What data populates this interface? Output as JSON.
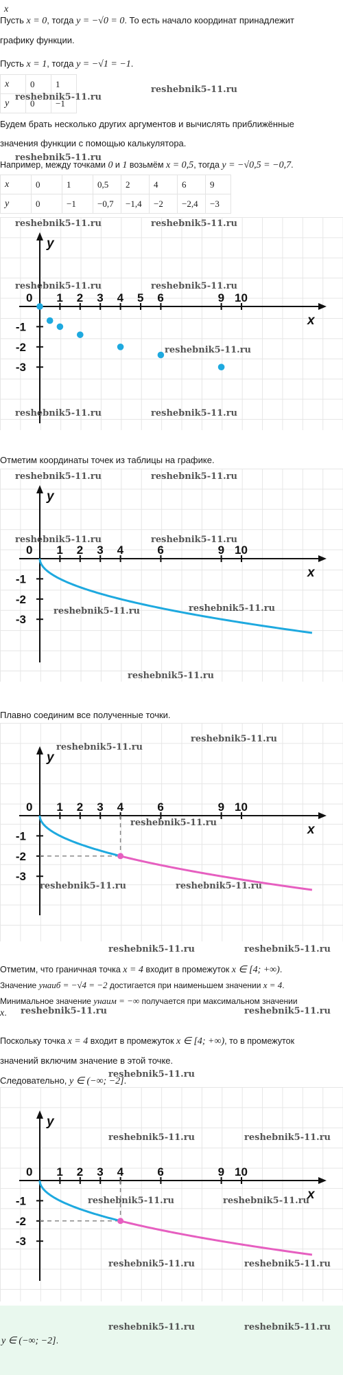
{
  "watermark": "reshebnik5-11.ru",
  "intro": {
    "header_var": "x",
    "line1_a": "Пусть ",
    "line1_m1": "x = 0",
    "line1_b": ", тогда ",
    "line1_m2": "y = −√0 = 0",
    "line1_c": ". То есть начало координат принадлежит",
    "line2": "графику функции.",
    "line3_a": "Пусть ",
    "line3_m1": "x = 1",
    "line3_b": ", тогда ",
    "line3_m2": "y = −√1 = −1",
    "line3_c": "."
  },
  "table1": {
    "rows": [
      [
        "x",
        "0",
        "1"
      ],
      [
        "y",
        "0",
        "−1"
      ]
    ]
  },
  "para2": {
    "line1": "Будем брать несколько других аргументов и вычислять приближённые",
    "line2": "значения функции с помощью калькулятора.",
    "line3_a": "Например, между точками ",
    "line3_m1": "0",
    "line3_b": " и ",
    "line3_m2": "1",
    "line3_c": " возьмём ",
    "line3_m3": "x = 0,5",
    "line3_d": ", тогда ",
    "line3_m4": "y = −√0,5 = −0,7",
    "line3_e": "."
  },
  "table2": {
    "rows": [
      [
        "x",
        "0",
        "1",
        "0,5",
        "2",
        "4",
        "6",
        "9"
      ],
      [
        "y",
        "0",
        "−1",
        "−0,7",
        "−1,4",
        "−2",
        "−2,4",
        "−3"
      ]
    ]
  },
  "chart_data": [
    {
      "type": "scatter",
      "x": [
        0,
        0.5,
        1,
        2,
        4,
        6,
        9
      ],
      "y": [
        0,
        -0.7,
        -1,
        -1.4,
        -2,
        -2.4,
        -3
      ],
      "xlabel": "x",
      "ylabel": "y",
      "xticks": [
        "0",
        "1",
        "2",
        "3",
        "4",
        "5",
        "6",
        "9",
        "10"
      ],
      "yticks": [
        "-1",
        "-2",
        "-3"
      ],
      "color": "#1ea9df"
    },
    {
      "type": "line",
      "function": "y = -sqrt(x)",
      "xlim": [
        0,
        13.5
      ],
      "xlabel": "x",
      "ylabel": "y",
      "xticks": [
        "0",
        "1",
        "2",
        "3",
        "4",
        "6",
        "9",
        "10"
      ],
      "yticks": [
        "-1",
        "-2",
        "-3"
      ],
      "color": "#1ea9df"
    },
    {
      "type": "line",
      "function": "y = -sqrt(x)",
      "xlim": [
        0,
        13.5
      ],
      "split_at": 4,
      "marked_point": [
        4,
        -2
      ],
      "xlabel": "x",
      "ylabel": "y",
      "xticks": [
        "0",
        "1",
        "2",
        "3",
        "4",
        "6",
        "9",
        "10"
      ],
      "yticks": [
        "-1",
        "-2",
        "-3"
      ],
      "colors": [
        "#1ea9df",
        "#e65fc0"
      ]
    },
    {
      "type": "line",
      "function": "y = -sqrt(x)",
      "xlim": [
        0,
        13.5
      ],
      "split_at": 4,
      "marked_point": [
        4,
        -2
      ],
      "xlabel": "x",
      "ylabel": "y",
      "xticks": [
        "0",
        "1",
        "2",
        "3",
        "4",
        "6",
        "9",
        "10"
      ],
      "yticks": [
        "-1",
        "-2",
        "-3"
      ],
      "colors": [
        "#1ea9df",
        "#e65fc0"
      ]
    }
  ],
  "text_after_chart1": "Отметим координаты точек из таблицы на графике.",
  "text_after_chart2": "Плавно соединим все полученные точки.",
  "para3": {
    "l1_a": "Отметим, что граничная точка ",
    "l1_m1": "x = 4",
    "l1_b": " входит в промежуток ",
    "l1_m2": "x ∈ [4; +∞)",
    "l1_c": ".",
    "l2_a": "Значение ",
    "l2_m1": "yнаиб = −√4 = −2",
    "l2_b": " достигается при наименьшем значении ",
    "l2_m2": "x = 4",
    "l2_c": ".",
    "l3_a": "Минимальное значение ",
    "l3_m1": "yнаим = −∞",
    "l3_b": " получается при максимальном значении",
    "l4_m1": "x",
    "l4_c": ".",
    "l5_a": "Поскольку точка ",
    "l5_m1": "x = 4",
    "l5_b": " входит в промежуток ",
    "l5_m2": "x ∈ [4; +∞)",
    "l5_c": ", то в промежуток",
    "l6": "значений включим значение в этой точке.",
    "l7_a": "Следовательно, ",
    "l7_m1": "y ∈ (−∞; −2]",
    "l7_c": "."
  },
  "answer": {
    "m": "y ∈ (−∞; −2]",
    "c": "."
  }
}
